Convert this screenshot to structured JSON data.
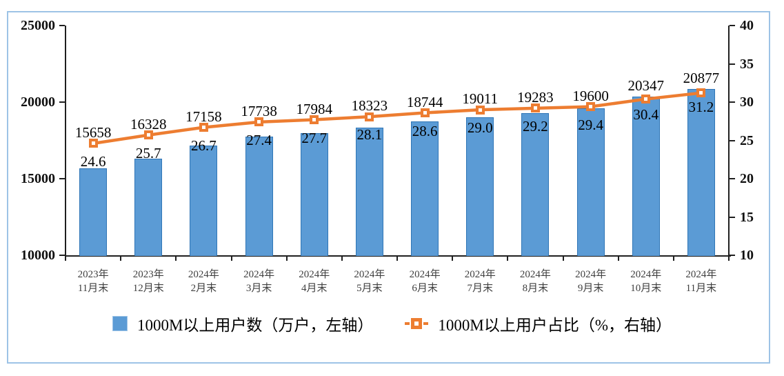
{
  "chart_data": {
    "type": "combo-bar-line",
    "categories": [
      [
        "2023年",
        "11月末"
      ],
      [
        "2023年",
        "12月末"
      ],
      [
        "2024年",
        "2月末"
      ],
      [
        "2024年",
        "3月末"
      ],
      [
        "2024年",
        "4月末"
      ],
      [
        "2024年",
        "5月末"
      ],
      [
        "2024年",
        "6月末"
      ],
      [
        "2024年",
        "7月末"
      ],
      [
        "2024年",
        "8月末"
      ],
      [
        "2024年",
        "9月末"
      ],
      [
        "2024年",
        "10月末"
      ],
      [
        "2024年",
        "11月末"
      ]
    ],
    "series": [
      {
        "name": "1000M以上用户数（万户，左轴）",
        "type": "bar",
        "axis": "left",
        "values": [
          15658,
          16328,
          17158,
          17738,
          17984,
          18323,
          18744,
          19011,
          19283,
          19600,
          20347,
          20877
        ],
        "labels": [
          "15658",
          "16328",
          "17158",
          "17738",
          "17984",
          "18323",
          "18744",
          "19011",
          "19283",
          "19600",
          "20347",
          "20877"
        ]
      },
      {
        "name": "1000M以上用户占比（%，右轴）",
        "type": "line",
        "axis": "right",
        "values": [
          24.6,
          25.7,
          26.7,
          27.4,
          27.7,
          28.1,
          28.6,
          29.0,
          29.2,
          29.4,
          30.4,
          31.2
        ],
        "labels": [
          "24.6",
          "25.7",
          "26.7",
          "27.4",
          "27.7",
          "28.1",
          "28.6",
          "29.0",
          "29.2",
          "29.4",
          "30.4",
          "31.2"
        ]
      }
    ],
    "left_axis": {
      "min": 10000,
      "max": 25000,
      "ticks": [
        25000,
        20000,
        15000,
        10000
      ],
      "tick_labels": [
        "25000",
        "20000",
        "15000",
        "10000"
      ]
    },
    "right_axis": {
      "min": 10,
      "max": 40,
      "ticks": [
        40,
        35,
        30,
        25,
        20,
        15,
        10
      ],
      "tick_labels": [
        "40",
        "35",
        "30",
        "25",
        "20",
        "15",
        "10"
      ]
    },
    "legend": [
      {
        "label": "1000M以上用户数（万户，左轴）",
        "marker": "square"
      },
      {
        "label": "1000M以上用户占比（%，右轴）",
        "marker": "dash-square-dash"
      }
    ],
    "colors": {
      "bar_fill": "#5B9BD5",
      "bar_border": "#2E75B6",
      "line": "#ED7D31",
      "frame_border": "#9DC3E6",
      "axis": "#1F1F1F"
    },
    "grid": "off",
    "legend_position": "bottom"
  }
}
